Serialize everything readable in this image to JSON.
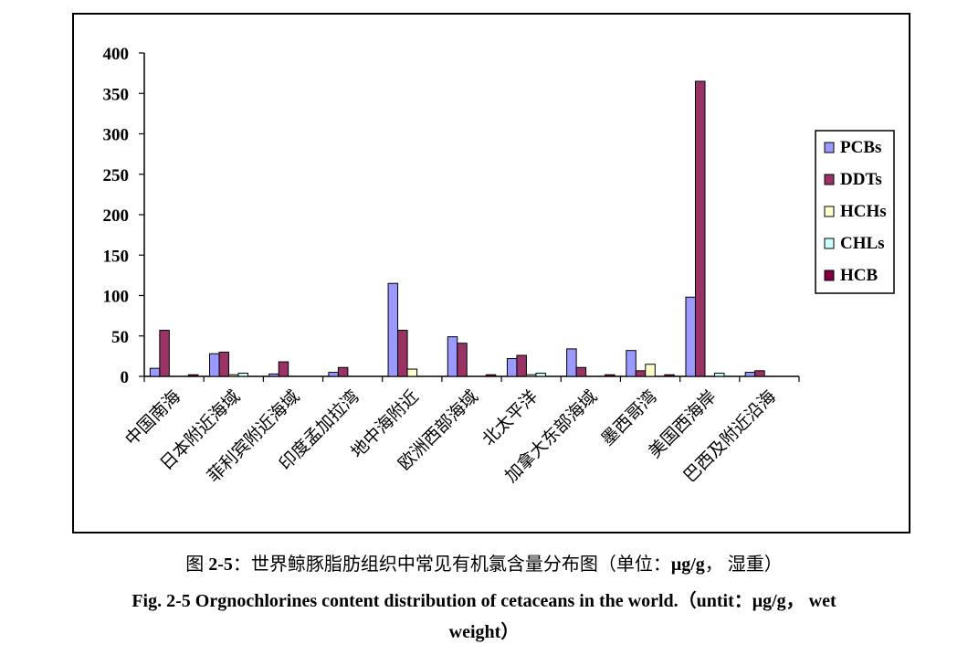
{
  "chart_data": {
    "type": "bar",
    "title": "",
    "xlabel": "",
    "ylabel": "",
    "ylim": [
      0,
      400
    ],
    "yticks": [
      0,
      50,
      100,
      150,
      200,
      250,
      300,
      350,
      400
    ],
    "grid": false,
    "legend_position": "right",
    "categories": [
      "中国南海",
      "日本附近海域",
      "菲利宾附近海域",
      "印度孟加拉湾",
      "地中海附近",
      "欧洲西部海域",
      "北太平洋",
      "加拿大东部海域",
      "墨西哥湾",
      "美国西海岸",
      "巴西及附近沿海"
    ],
    "series": [
      {
        "name": "PCBs",
        "color": "#9999ff",
        "values": [
          10,
          28,
          3,
          5,
          115,
          49,
          22,
          34,
          32,
          98,
          5
        ]
      },
      {
        "name": "DDTs",
        "color": "#993366",
        "values": [
          57,
          30,
          18,
          11,
          57,
          41,
          26,
          11,
          7,
          365,
          7
        ]
      },
      {
        "name": "HCHs",
        "color": "#ffffcc",
        "values": [
          0,
          2,
          0,
          0,
          9,
          0,
          2,
          0,
          15,
          0,
          0
        ]
      },
      {
        "name": "CHLs",
        "color": "#ccffff",
        "values": [
          0,
          4,
          0,
          0,
          0,
          0,
          4,
          0,
          0,
          4,
          0
        ]
      },
      {
        "name": "HCB",
        "color": "#800040",
        "values": [
          2,
          0,
          0,
          0,
          0,
          2,
          0,
          2,
          2,
          0,
          0
        ]
      }
    ]
  },
  "caption": {
    "cn_prefix": "图 ",
    "cn_number": "2-5",
    "cn_text": "：世界鲸豚脂肪组织中常见有机氯含量分布图（单位：",
    "cn_unit": "μg/g",
    "cn_suffix": "，  湿重）",
    "en_line1": "Fig. 2-5 Orgnochlorines content distribution of cetaceans in the world.（untit：μg/g，  wet",
    "en_line2": "weight）"
  }
}
